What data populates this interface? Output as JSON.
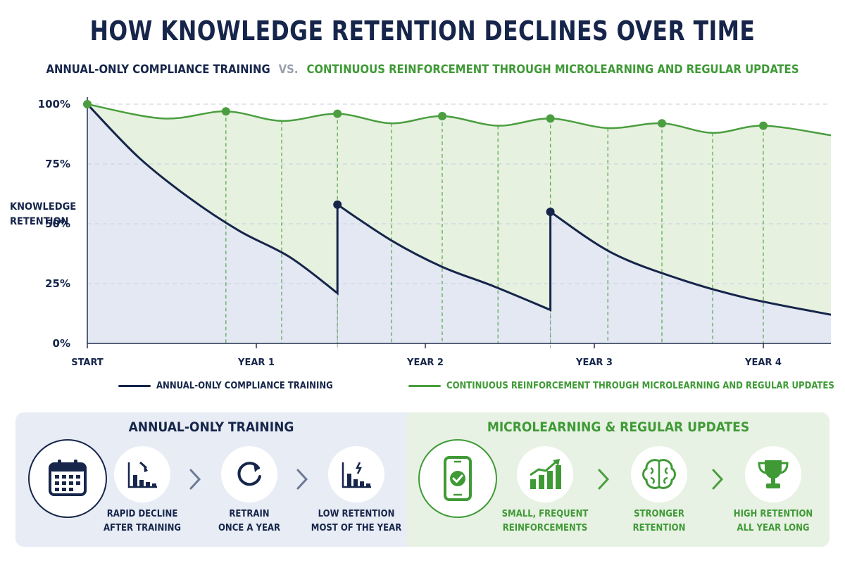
{
  "title": "HOW KNOWLEDGE RETENTION DECLINES OVER TIME",
  "subtitle": {
    "left": "ANNUAL-ONLY COMPLIANCE TRAINING",
    "vs": "VS.",
    "right": "CONTINUOUS REINFORCEMENT THROUGH MICROLEARNING AND REGULAR UPDATES"
  },
  "colors": {
    "navy": "#16254a",
    "green": "#4a9e3f",
    "navy_fill": "#e3e8f3",
    "green_fill": "#e6f1df"
  },
  "chart_data": {
    "type": "line",
    "ylabel": "KNOWLEDGE RETENTION",
    "xlabel": "",
    "y_ticks": [
      "0%",
      "25%",
      "50%",
      "75%",
      "100%"
    ],
    "y_tick_values": [
      0,
      25,
      50,
      75,
      100
    ],
    "x_ticks": [
      "START",
      "YEAR 1",
      "YEAR 2",
      "YEAR 3",
      "YEAR 4"
    ],
    "x_tick_values": [
      0,
      1,
      2,
      3,
      4
    ],
    "xlim": [
      0,
      4.4
    ],
    "ylim": [
      0,
      100
    ],
    "grid": "horizontal dashed",
    "series": [
      {
        "name": "ANNUAL-ONLY COMPLIANCE TRAINING",
        "color": "#16254a",
        "x": [
          0,
          0.3,
          0.6,
          0.9,
          1.2,
          1.48,
          1.48,
          1.8,
          2.1,
          2.4,
          2.74,
          2.74,
          3.1,
          3.5,
          3.9,
          4.4
        ],
        "y": [
          100,
          78,
          61,
          47,
          36,
          21,
          58,
          43,
          32,
          24,
          14,
          55,
          38,
          27,
          19,
          12
        ],
        "markers": [
          [
            0,
            100
          ],
          [
            1.48,
            58
          ],
          [
            2.74,
            55
          ]
        ]
      },
      {
        "name": "CONTINUOUS REINFORCEMENT THROUGH MICROLEARNING AND REGULAR UPDATES",
        "color": "#4a9e3f",
        "x": [
          0,
          0.45,
          0.82,
          1.15,
          1.48,
          1.8,
          2.1,
          2.43,
          2.74,
          3.08,
          3.4,
          3.7,
          4.0,
          4.4
        ],
        "y": [
          100,
          94,
          97,
          93,
          96,
          92,
          95,
          91,
          94,
          90,
          92,
          88,
          91,
          87
        ],
        "markers": [
          [
            0,
            100
          ],
          [
            0.82,
            97
          ],
          [
            1.48,
            96
          ],
          [
            2.1,
            95
          ],
          [
            2.74,
            94
          ],
          [
            3.4,
            92
          ],
          [
            4.0,
            91
          ]
        ]
      }
    ],
    "annotations": "vertical dashed green guide lines at reinforcement points"
  },
  "legend": {
    "annual": "ANNUAL-ONLY COMPLIANCE TRAINING",
    "micro": "CONTINUOUS REINFORCEMENT THROUGH MICROLEARNING AND REGULAR UPDATES"
  },
  "annual_panel": {
    "title": "ANNUAL-ONLY TRAINING",
    "steps": [
      {
        "icon": "calendar-icon",
        "label1": "",
        "label2": ""
      },
      {
        "icon": "declining-bar-chart-icon",
        "label1": "RAPID DECLINE",
        "label2": "AFTER TRAINING"
      },
      {
        "icon": "refresh-icon",
        "label1": "RETRAIN",
        "label2": "ONCE A YEAR"
      },
      {
        "icon": "low-bar-chart-icon",
        "label1": "LOW RETENTION",
        "label2": "MOST OF THE YEAR"
      }
    ]
  },
  "micro_panel": {
    "title": "MICROLEARNING & REGULAR UPDATES",
    "steps": [
      {
        "icon": "smartphone-check-icon",
        "label1": "",
        "label2": ""
      },
      {
        "icon": "rising-bar-chart-icon",
        "label1": "SMALL, FREQUENT",
        "label2": "REINFORCEMENTS"
      },
      {
        "icon": "brain-icon",
        "label1": "STRONGER",
        "label2": "RETENTION"
      },
      {
        "icon": "trophy-icon",
        "label1": "HIGH RETENTION",
        "label2": "ALL YEAR LONG"
      }
    ]
  }
}
